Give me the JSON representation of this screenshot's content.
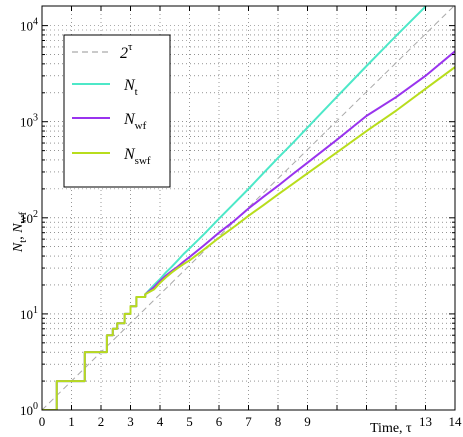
{
  "chart_data": {
    "type": "line",
    "xlabel": "Time, τ",
    "ylabel_main_1": "N",
    "ylabel_sub_1": "t",
    "ylabel_sep": ", ",
    "ylabel_main_2": "N",
    "ylabel_sub_2": "wf",
    "xlim": [
      0,
      14
    ],
    "ylim": [
      1,
      16000
    ],
    "y_scale": "log",
    "grid": true,
    "legend_position": "top-left",
    "x_ticks": [
      0,
      1,
      2,
      3,
      4,
      5,
      6,
      7,
      8,
      9,
      13,
      14
    ],
    "x_tick_labels": [
      "0",
      "1",
      "2",
      "3",
      "4",
      "5",
      "6",
      "7",
      "8",
      "9",
      "13",
      "14"
    ],
    "y_ticks": [
      1,
      10,
      100,
      1000,
      10000
    ],
    "y_tick_base": "10",
    "y_tick_exponents": [
      "0",
      "1",
      "2",
      "3",
      "4"
    ],
    "series": [
      {
        "name": "2^τ",
        "legend_main": "2",
        "legend_sup": "τ",
        "color": "#aaaaaa",
        "dash": "6,4",
        "x": [
          0,
          14
        ],
        "y": [
          1,
          16384
        ]
      },
      {
        "name": "N_t",
        "legend_main": "N",
        "legend_sub": "t",
        "color": "#4de8c8",
        "x": [
          0,
          0.5,
          0.5,
          1.45,
          1.45,
          2.2,
          2.2,
          2.4,
          2.4,
          2.55,
          2.55,
          2.8,
          2.8,
          3.0,
          3.0,
          3.2,
          3.2,
          3.5,
          3.5,
          3.8,
          4.0,
          4.2,
          4.4,
          4.6,
          4.8,
          5.0,
          5.5,
          6.0,
          6.5,
          7.0,
          7.5,
          8.0,
          8.5,
          9.0,
          10.0,
          11.0,
          12.0,
          13.0,
          13.7
        ],
        "y": [
          1,
          1,
          2,
          2,
          4,
          4,
          6,
          6,
          7,
          7,
          8,
          8,
          10,
          10,
          12,
          12,
          15,
          15,
          16,
          20,
          23,
          27,
          31,
          36,
          42,
          48,
          68,
          98,
          140,
          200,
          290,
          420,
          600,
          870,
          1820,
          3800,
          7800,
          15800,
          27000
        ]
      },
      {
        "name": "N_wf",
        "legend_main": "N",
        "legend_sub": "wf",
        "color": "#9933ee",
        "x": [
          0,
          0.5,
          0.5,
          1.45,
          1.45,
          2.2,
          2.2,
          2.4,
          2.4,
          2.55,
          2.55,
          2.8,
          2.8,
          3.0,
          3.0,
          3.2,
          3.2,
          3.5,
          3.5,
          3.8,
          4.0,
          4.2,
          4.4,
          4.6,
          4.8,
          5.0,
          5.5,
          6.0,
          6.5,
          7.0,
          7.5,
          8.0,
          8.5,
          9.0,
          10.0,
          11.0,
          12.0,
          13.0,
          14.0
        ],
        "y": [
          1,
          1,
          2,
          2,
          4,
          4,
          6,
          6,
          7,
          7,
          8,
          8,
          10,
          10,
          12,
          12,
          15,
          15,
          16,
          19,
          22,
          25,
          28,
          31,
          35,
          39,
          52,
          70,
          92,
          125,
          165,
          215,
          285,
          375,
          650,
          1150,
          1800,
          3000,
          5400
        ]
      },
      {
        "name": "N_swf",
        "legend_main": "N",
        "legend_sub": "swf",
        "color": "#b8dd1c",
        "x": [
          0,
          0.5,
          0.5,
          1.45,
          1.45,
          2.2,
          2.2,
          2.4,
          2.4,
          2.55,
          2.55,
          2.8,
          2.8,
          3.0,
          3.0,
          3.2,
          3.2,
          3.5,
          3.5,
          3.8,
          4.0,
          4.2,
          4.4,
          4.6,
          4.8,
          5.0,
          5.5,
          6.0,
          6.5,
          7.0,
          7.5,
          8.0,
          8.5,
          9.0,
          10.0,
          11.0,
          12.0,
          13.0,
          14.0
        ],
        "y": [
          1,
          1,
          2,
          2,
          4,
          4,
          6,
          6,
          7,
          7,
          8,
          8,
          10,
          10,
          12,
          12,
          15,
          15,
          16,
          18,
          21,
          24,
          27,
          30,
          33,
          36,
          47,
          62,
          80,
          105,
          135,
          175,
          225,
          290,
          480,
          800,
          1300,
          2200,
          3700
        ]
      }
    ]
  }
}
